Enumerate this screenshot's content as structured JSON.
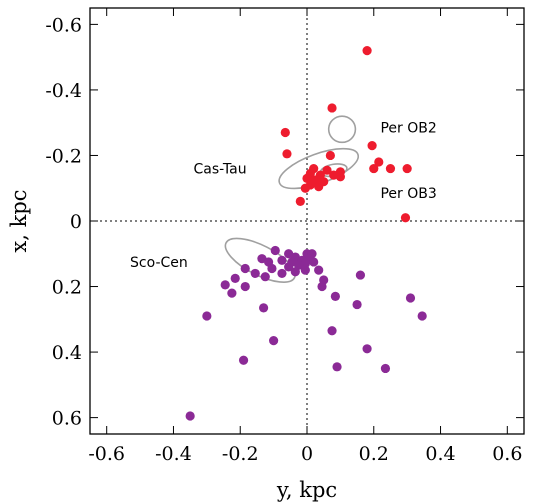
{
  "chart_data": {
    "type": "scatter",
    "title": "",
    "xlabel": "y, kpc",
    "ylabel": "x, kpc",
    "xlim": [
      -0.65,
      0.65
    ],
    "ylim": [
      -0.65,
      0.65
    ],
    "y_axis_inverted": true,
    "grid": false,
    "x_ticks": [
      -0.6,
      -0.4,
      -0.2,
      0,
      0.2,
      0.4,
      0.6
    ],
    "x_tick_labels": [
      "-0.6",
      "-0.4",
      "-0.2",
      "0",
      "0.2",
      "0.4",
      "0.6"
    ],
    "y_ticks": [
      -0.6,
      -0.4,
      -0.2,
      0,
      0.2,
      0.4,
      0.6
    ],
    "y_tick_labels": [
      "-0.6",
      "-0.4",
      "-0.2",
      "0",
      "0.2",
      "0.4",
      "0.6"
    ],
    "zero_lines": true,
    "annotations": [
      {
        "text": "Per OB2",
        "x": 0.22,
        "y": -0.285
      },
      {
        "text": "Cas-Tau",
        "x": -0.34,
        "y": -0.16
      },
      {
        "text": "Per OB3",
        "x": 0.22,
        "y": -0.085
      },
      {
        "text": "Sco-Cen",
        "x": -0.53,
        "y": 0.125
      }
    ],
    "ellipses": [
      {
        "cx": 0.105,
        "cy": -0.28,
        "rx": 0.04,
        "ry": 0.04,
        "angle": 0,
        "color": "#a0a0a0"
      },
      {
        "cx": 0.035,
        "cy": -0.16,
        "rx": 0.125,
        "ry": 0.045,
        "angle": -20,
        "color": "#a0a0a0"
      },
      {
        "cx": 0.08,
        "cy": -0.155,
        "rx": 0.04,
        "ry": 0.018,
        "angle": -10,
        "color": "#a0a0a0"
      },
      {
        "cx": -0.14,
        "cy": 0.12,
        "rx": 0.115,
        "ry": 0.045,
        "angle": 27,
        "color": "#a0a0a0"
      }
    ],
    "series": [
      {
        "color": "#ee1c2e",
        "points": [
          [
            0.18,
            -0.52
          ],
          [
            0.075,
            -0.345
          ],
          [
            -0.065,
            -0.27
          ],
          [
            0.195,
            -0.23
          ],
          [
            -0.06,
            -0.205
          ],
          [
            0.07,
            -0.2
          ],
          [
            0.215,
            -0.18
          ],
          [
            0.2,
            -0.16
          ],
          [
            0.25,
            -0.16
          ],
          [
            0.3,
            -0.16
          ],
          [
            0.02,
            -0.16
          ],
          [
            0.06,
            -0.155
          ],
          [
            0.1,
            -0.15
          ],
          [
            0.01,
            -0.145
          ],
          [
            0.08,
            -0.14
          ],
          [
            0.04,
            -0.14
          ],
          [
            0.1,
            -0.135
          ],
          [
            0.0,
            -0.13
          ],
          [
            0.025,
            -0.125
          ],
          [
            0.05,
            -0.12
          ],
          [
            0.01,
            -0.11
          ],
          [
            0.035,
            -0.105
          ],
          [
            -0.005,
            -0.1
          ],
          [
            -0.02,
            -0.06
          ],
          [
            0.295,
            -0.01
          ]
        ]
      },
      {
        "color": "#8b2a96",
        "points": [
          [
            -0.095,
            0.09
          ],
          [
            0.0,
            0.1
          ],
          [
            0.015,
            0.1
          ],
          [
            -0.055,
            0.1
          ],
          [
            -0.035,
            0.11
          ],
          [
            -0.135,
            0.115
          ],
          [
            0.005,
            0.115
          ],
          [
            -0.015,
            0.12
          ],
          [
            -0.075,
            0.12
          ],
          [
            -0.045,
            0.125
          ],
          [
            -0.115,
            0.125
          ],
          [
            0.02,
            0.125
          ],
          [
            -0.005,
            0.13
          ],
          [
            -0.025,
            0.135
          ],
          [
            -0.055,
            0.14
          ],
          [
            -0.105,
            0.145
          ],
          [
            -0.185,
            0.145
          ],
          [
            0.035,
            0.15
          ],
          [
            -0.005,
            0.15
          ],
          [
            -0.035,
            0.155
          ],
          [
            -0.075,
            0.16
          ],
          [
            -0.155,
            0.16
          ],
          [
            -0.125,
            0.17
          ],
          [
            0.16,
            0.165
          ],
          [
            -0.215,
            0.175
          ],
          [
            0.05,
            0.18
          ],
          [
            -0.245,
            0.195
          ],
          [
            -0.185,
            0.2
          ],
          [
            0.045,
            0.2
          ],
          [
            -0.225,
            0.22
          ],
          [
            0.085,
            0.23
          ],
          [
            0.31,
            0.235
          ],
          [
            -0.13,
            0.265
          ],
          [
            0.15,
            0.255
          ],
          [
            -0.3,
            0.29
          ],
          [
            0.345,
            0.29
          ],
          [
            0.075,
            0.335
          ],
          [
            -0.1,
            0.365
          ],
          [
            0.18,
            0.39
          ],
          [
            -0.19,
            0.425
          ],
          [
            0.09,
            0.445
          ],
          [
            0.235,
            0.45
          ],
          [
            -0.35,
            0.595
          ]
        ]
      }
    ]
  }
}
